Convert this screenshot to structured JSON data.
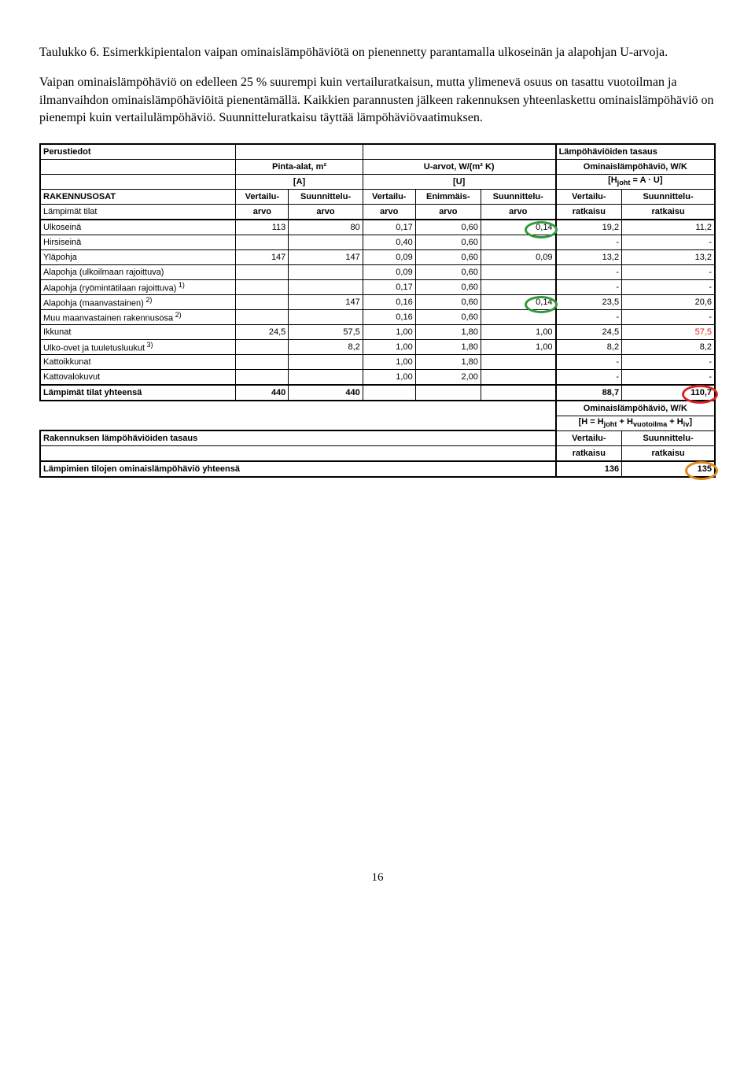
{
  "intro": {
    "p1": "Taulukko 6. Esimerkkipientalon vaipan ominaislämpöhäviötä on pienennetty parantamalla ulkoseinän ja alapohjan U-arvoja.",
    "p2": "Vaipan ominaislämpöhäviö on edelleen 25 % suurempi kuin vertailuratkaisun, mutta ylimenevä osuus on tasattu vuotoilman ja ilmanvaihdon ominaislämpöhäviöitä pienentämällä. Kaikkien parannusten jälkeen rakennuksen yhteenlaskettu ominaislämpöhäviö on pienempi kuin vertailulämpöhäviö. Suunnitteluratkaisu täyttää lämpöhäviövaatimuksen."
  },
  "headers": {
    "perustiedot": "Perustiedot",
    "lampohav_tasaus": "Lämpöhäviöiden tasaus",
    "pinta_alat": "Pinta-alat, m²",
    "a": "[A]",
    "u_arvot": "U-arvot, W/(m² K)",
    "u": "[U]",
    "ominais": "Ominaislämpöhäviö, W/K",
    "hjoht": "[H_joht = A · U]",
    "rakennusosat": "RAKENNUSOSAT",
    "lampimat": "Lämpimät tilat",
    "vertailu_arvo": "Vertailu-arvo",
    "suunnittelu_arvo": "Suunnittelu-arvo",
    "enimmais_arvo": "Enimmäis-arvo",
    "vertailu_ratkaisu": "Vertailu-ratkaisu",
    "suunnittelu_ratkaisu": "Suunnittelu-ratkaisu"
  },
  "rows": [
    {
      "label": "Ulkoseinä",
      "a_v": "113",
      "a_s": "80",
      "u_v": "0,17",
      "u_e": "0,60",
      "u_s": "0,14",
      "h_v": "19,2",
      "h_s": "11,2",
      "circle": "green"
    },
    {
      "label": "Hirsiseinä",
      "a_v": "",
      "a_s": "",
      "u_v": "0,40",
      "u_e": "0,60",
      "u_s": "",
      "h_v": "-",
      "h_s": "-"
    },
    {
      "label": "Yläpohja",
      "a_v": "147",
      "a_s": "147",
      "u_v": "0,09",
      "u_e": "0,60",
      "u_s": "0,09",
      "h_v": "13,2",
      "h_s": "13,2"
    },
    {
      "label": "Alapohja (ulkoilmaan rajoittuva)",
      "a_v": "",
      "a_s": "",
      "u_v": "0,09",
      "u_e": "0,60",
      "u_s": "",
      "h_v": "-",
      "h_s": "-"
    },
    {
      "label": "Alapohja (ryömintätilaan rajoittuva)",
      "sup": "1)",
      "a_v": "",
      "a_s": "",
      "u_v": "0,17",
      "u_e": "0,60",
      "u_s": "",
      "h_v": "-",
      "h_s": "-"
    },
    {
      "label": "Alapohja (maanvastainen)",
      "sup": "2)",
      "a_v": "",
      "a_s": "147",
      "u_v": "0,16",
      "u_e": "0,60",
      "u_s": "0,14",
      "h_v": "23,5",
      "h_s": "20,6",
      "circle": "green"
    },
    {
      "label": "Muu maanvastainen rakennusosa",
      "sup": "2)",
      "a_v": "",
      "a_s": "",
      "u_v": "0,16",
      "u_e": "0,60",
      "u_s": "",
      "h_v": "-",
      "h_s": "-"
    },
    {
      "label": "Ikkunat",
      "a_v": "24,5",
      "a_s": "57,5",
      "u_v": "1,00",
      "u_e": "1,80",
      "u_s": "1,00",
      "h_v": "24,5",
      "h_s": "57,5",
      "hs_red": true
    },
    {
      "label": "Ulko-ovet ja tuuletusluukut",
      "sup": "3)",
      "a_v": "",
      "a_s": "8,2",
      "u_v": "1,00",
      "u_e": "1,80",
      "u_s": "1,00",
      "h_v": "8,2",
      "h_s": "8,2"
    },
    {
      "label": "Kattoikkunat",
      "a_v": "",
      "a_s": "",
      "u_v": "1,00",
      "u_e": "1,80",
      "u_s": "",
      "h_v": "-",
      "h_s": "-"
    },
    {
      "label": "Kattovalokuvut",
      "a_v": "",
      "a_s": "",
      "u_v": "1,00",
      "u_e": "2,00",
      "u_s": "",
      "h_v": "-",
      "h_s": "-"
    }
  ],
  "totals": {
    "lampimat_yht": "Lämpimät tilat yhteensä",
    "a_v": "440",
    "a_s": "440",
    "h_v": "88,7",
    "h_s": "110,7"
  },
  "footer": {
    "ominais2": "Ominaislämpöhäviö, W/K",
    "formula": "[H = H_joht + H_vuotoilma + H_iv]",
    "rak_tasaus": "Rakennuksen lämpöhäviöiden tasaus",
    "lampimien": "Lämpimien tilojen ominaislämpöhäviö yhteensä",
    "vert": "Vertailu-ratkaisu",
    "suun": "Suunnittelu-ratkaisu",
    "v_val": "136",
    "s_val": "135"
  },
  "page": "16",
  "colors": {
    "green": "#2e9a3a",
    "red": "#d9261c",
    "orange": "#e0871a"
  }
}
